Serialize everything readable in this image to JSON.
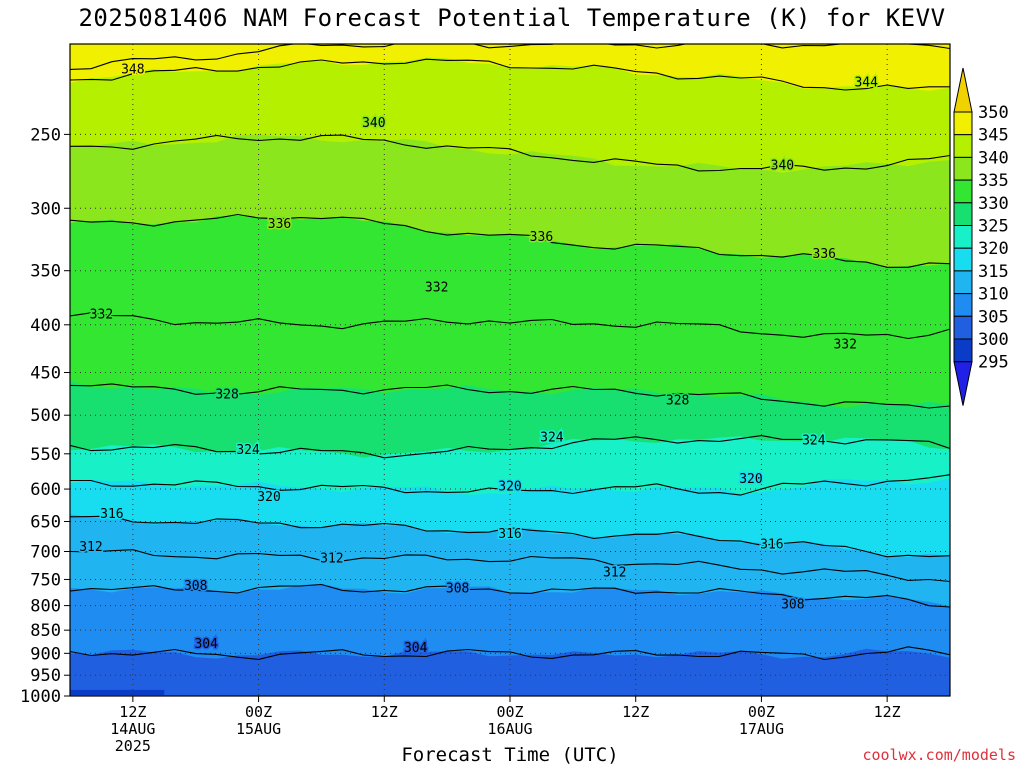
{
  "title": "2025081406 NAM Forecast Potential Temperature (K) for KEVV",
  "xlabel": "Forecast Time (UTC)",
  "credit": "coolwx.com/models",
  "chart_data": {
    "type": "contour",
    "title": "2025081406 NAM Forecast Potential Temperature (K) for KEVV",
    "xlabel": "Forecast Time (UTC)",
    "ylabel": "",
    "y_scale": "log",
    "y_reversed": true,
    "x_start": "2025-08-14T06:00Z",
    "x_end": "2025-08-17T18:00Z",
    "ylim": [
      1000,
      200
    ],
    "y_ticks": [
      250,
      300,
      350,
      400,
      450,
      500,
      550,
      600,
      650,
      700,
      750,
      800,
      850,
      900,
      950,
      1000
    ],
    "x_ticks": [
      {
        "time": "2025-08-14T12:00Z",
        "lines": [
          "12Z",
          "14AUG",
          "2025"
        ]
      },
      {
        "time": "2025-08-15T00:00Z",
        "lines": [
          "00Z",
          "15AUG"
        ]
      },
      {
        "time": "2025-08-15T12:00Z",
        "lines": [
          "12Z"
        ]
      },
      {
        "time": "2025-08-16T00:00Z",
        "lines": [
          "00Z",
          "16AUG"
        ]
      },
      {
        "time": "2025-08-16T12:00Z",
        "lines": [
          "12Z"
        ]
      },
      {
        "time": "2025-08-17T00:00Z",
        "lines": [
          "00Z",
          "17AUG"
        ]
      },
      {
        "time": "2025-08-17T12:00Z",
        "lines": [
          "12Z"
        ]
      }
    ],
    "grid": true,
    "colorbar": {
      "levels": [
        295,
        300,
        305,
        310,
        315,
        320,
        325,
        330,
        335,
        340,
        345,
        350
      ],
      "colors": [
        "#2020e6",
        "#0a3cc8",
        "#2060e0",
        "#1e8cf0",
        "#20b4f0",
        "#18dcf0",
        "#18f0c8",
        "#18e070",
        "#32e632",
        "#8ce61e",
        "#b4f000",
        "#f0f000",
        "#f0d200"
      ]
    },
    "series": [
      {
        "value": 304,
        "p": [
          896,
          900,
          905,
          900,
          902,
          898,
          905,
          900,
          902,
          905,
          895,
          900
        ]
      },
      {
        "value": 308,
        "p": [
          764,
          770,
          768,
          765,
          770,
          768,
          772,
          770,
          776,
          782,
          790,
          800
        ]
      },
      {
        "value": 312,
        "p": [
          700,
          705,
          708,
          710,
          712,
          712,
          715,
          720,
          730,
          735,
          745,
          750
        ]
      },
      {
        "value": 316,
        "p": [
          645,
          648,
          652,
          655,
          660,
          665,
          670,
          672,
          680,
          692,
          705,
          710
        ]
      },
      {
        "value": 320,
        "p": [
          590,
          592,
          595,
          598,
          600,
          605,
          600,
          598,
          605,
          590,
          588,
          585
        ]
      },
      {
        "value": 324,
        "p": [
          540,
          542,
          545,
          548,
          550,
          545,
          535,
          530,
          532,
          530,
          535,
          540
        ]
      },
      {
        "value": 328,
        "p": [
          460,
          470,
          472,
          470,
          468,
          470,
          470,
          472,
          478,
          485,
          490,
          485
        ]
      },
      {
        "value": 332,
        "p": [
          390,
          395,
          398,
          400,
          398,
          395,
          400,
          398,
          405,
          412,
          410,
          405
        ]
      },
      {
        "value": 336,
        "p": [
          312,
          310,
          308,
          305,
          315,
          320,
          328,
          330,
          335,
          340,
          345,
          345
        ]
      },
      {
        "value": 340,
        "p": [
          258,
          256,
          252,
          252,
          255,
          260,
          265,
          270,
          272,
          272,
          268,
          265
        ]
      },
      {
        "value": 344,
        "p": [
          218,
          215,
          212,
          210,
          208,
          210,
          212,
          215,
          218,
          222,
          224,
          222
        ]
      },
      {
        "value": 348,
        "p": [
          212,
          208,
          205,
          200,
          200,
          200,
          200,
          200,
          200,
          200,
          200,
          200
        ]
      }
    ],
    "series_times_hours_from_start": [
      0,
      8,
      16,
      24,
      32,
      40,
      48,
      56,
      64,
      72,
      80,
      84
    ],
    "contour_labels": [
      {
        "text": "348",
        "time_h": 6,
        "p": 213
      },
      {
        "text": "344",
        "time_h": 76,
        "p": 220
      },
      {
        "text": "340",
        "time_h": 29,
        "p": 243
      },
      {
        "text": "340",
        "time_h": 68,
        "p": 270
      },
      {
        "text": "336",
        "time_h": 20,
        "p": 312
      },
      {
        "text": "336",
        "time_h": 45,
        "p": 322
      },
      {
        "text": "336",
        "time_h": 72,
        "p": 336
      },
      {
        "text": "332",
        "time_h": 3,
        "p": 390
      },
      {
        "text": "332",
        "time_h": 35,
        "p": 365
      },
      {
        "text": "332",
        "time_h": 74,
        "p": 420
      },
      {
        "text": "328",
        "time_h": 15,
        "p": 475
      },
      {
        "text": "328",
        "time_h": 58,
        "p": 482
      },
      {
        "text": "324",
        "time_h": 17,
        "p": 545
      },
      {
        "text": "324",
        "time_h": 46,
        "p": 528
      },
      {
        "text": "324",
        "time_h": 71,
        "p": 532
      },
      {
        "text": "320",
        "time_h": 19,
        "p": 612
      },
      {
        "text": "320",
        "time_h": 42,
        "p": 596
      },
      {
        "text": "320",
        "time_h": 65,
        "p": 585
      },
      {
        "text": "316",
        "time_h": 4,
        "p": 638
      },
      {
        "text": "316",
        "time_h": 42,
        "p": 670
      },
      {
        "text": "316",
        "time_h": 67,
        "p": 688
      },
      {
        "text": "312",
        "time_h": 2,
        "p": 692
      },
      {
        "text": "312",
        "time_h": 25,
        "p": 712
      },
      {
        "text": "312",
        "time_h": 52,
        "p": 737
      },
      {
        "text": "308",
        "time_h": 12,
        "p": 762
      },
      {
        "text": "308",
        "time_h": 37,
        "p": 767
      },
      {
        "text": "308",
        "time_h": 69,
        "p": 798
      },
      {
        "text": "304",
        "time_h": 13,
        "p": 880
      },
      {
        "text": "304",
        "time_h": 33,
        "p": 888
      }
    ]
  }
}
